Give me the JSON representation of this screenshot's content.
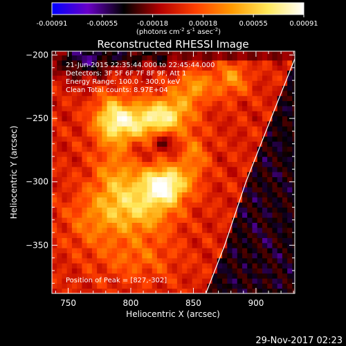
{
  "chart_data": {
    "type": "heatmap",
    "title": "Reconstructed RHESSI Image",
    "xlabel": "Heliocentric X (arcsec)",
    "ylabel": "Heliocentric Y (arcsec)",
    "xlim": [
      737,
      931
    ],
    "ylim": [
      -388,
      -197
    ],
    "x_ticks": [
      750,
      800,
      850,
      900
    ],
    "y_ticks": [
      -350,
      -300,
      -250,
      -200
    ],
    "colorbar": {
      "ticks": [
        "-0.00091",
        "-0.00055",
        "-0.00018",
        "0.00018",
        "0.00055",
        "0.00091"
      ],
      "range": [
        -0.00091,
        0.00091
      ],
      "units_prefix": "(photons cm",
      "units_exp1": "-2",
      "units_mid": " s",
      "units_exp2": "-1",
      "units_mid2": " asec",
      "units_exp3": "-2",
      "units_suffix": ")",
      "colormap": [
        "#0000ff",
        "#6a00c8",
        "#000000",
        "#b40000",
        "#ff4000",
        "#ff9a00",
        "#ffe85a",
        "#ffffff"
      ]
    },
    "annotations": [
      "21-Jun-2015 22:35:44.000 to 22:45:44.000",
      "Detectors: 3F 5F 6F 7F 8F 9F, Att 1",
      "Energy Range: 100.0 - 300.0 keV",
      "Clean     Total counts: 8.97E+04"
    ],
    "peak_label": "Position of Peak = [827,-302]",
    "peak": [
      827,
      -302
    ],
    "limb_points": [
      [
        860,
        -388
      ],
      [
        875,
        -350
      ],
      [
        892,
        -300
      ],
      [
        912,
        -250
      ],
      [
        931,
        -203
      ]
    ],
    "sources": [
      {
        "x": 827,
        "y": -302,
        "amp": 0.00091,
        "sx": 12,
        "sy": 10
      },
      {
        "x": 805,
        "y": -252,
        "amp": 0.0006,
        "sx": 18,
        "sy": 10
      },
      {
        "x": 830,
        "y": -246,
        "amp": 0.00052,
        "sx": 12,
        "sy": 10
      },
      {
        "x": 785,
        "y": -250,
        "amp": 0.00045,
        "sx": 10,
        "sy": 14
      },
      {
        "x": 810,
        "y": -322,
        "amp": 0.00045,
        "sx": 18,
        "sy": 14
      },
      {
        "x": 790,
        "y": -300,
        "amp": 0.00038,
        "sx": 14,
        "sy": 20
      },
      {
        "x": 850,
        "y": -225,
        "amp": 0.0004,
        "sx": 10,
        "sy": 10
      },
      {
        "x": 880,
        "y": -218,
        "amp": 0.00036,
        "sx": 10,
        "sy": 10
      },
      {
        "x": 850,
        "y": -280,
        "amp": 0.0003,
        "sx": 8,
        "sy": 14
      },
      {
        "x": 770,
        "y": -330,
        "amp": 0.00025,
        "sx": 16,
        "sy": 16
      },
      {
        "x": 805,
        "y": -360,
        "amp": 0.00022,
        "sx": 22,
        "sy": 12
      },
      {
        "x": 826,
        "y": -268,
        "amp": -0.0003,
        "sx": 7,
        "sy": 6
      },
      {
        "x": 805,
        "y": -278,
        "amp": -0.00012,
        "sx": 6,
        "sy": 6
      },
      {
        "x": 800,
        "y": -200,
        "amp": -0.00035,
        "sx": 40,
        "sy": 8
      },
      {
        "x": 760,
        "y": -205,
        "amp": -0.0003,
        "sx": 15,
        "sy": 12
      }
    ]
  },
  "timestamp": "29-Nov-2017 02:23"
}
